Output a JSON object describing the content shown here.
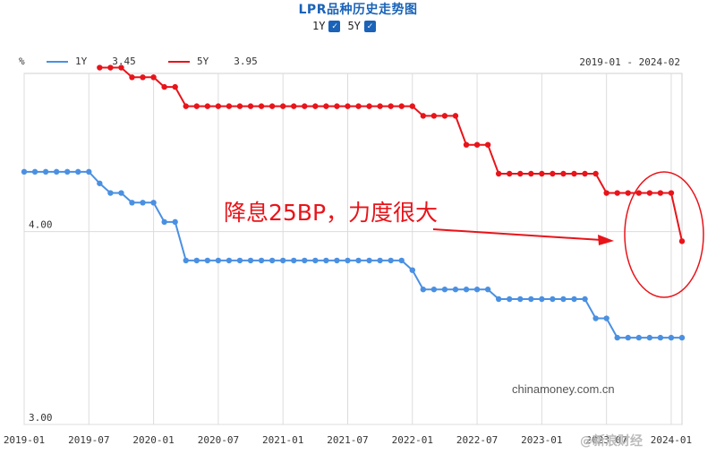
{
  "header": {
    "title": "LPR品种历史走势图",
    "toggles": [
      {
        "label": "1Y",
        "checked": true
      },
      {
        "label": "5Y",
        "checked": true
      }
    ]
  },
  "legend": {
    "unit": "%",
    "items": [
      {
        "name": "1Y",
        "value": "3.45",
        "color": "#4a90e2"
      },
      {
        "name": "5Y",
        "value": "3.95",
        "color": "#e8141a"
      }
    ],
    "date_range": "2019-01 - 2024-02"
  },
  "annotation": {
    "text": "降息25BP，力度很大",
    "color": "#e8141a"
  },
  "watermarks": {
    "source": "chinamoney.com.cn",
    "weibo": "@新浪财经"
  },
  "chart_data": {
    "type": "line",
    "title": "LPR品种历史走势图",
    "xlabel": "",
    "ylabel": "%",
    "ylim": [
      3.0,
      4.82
    ],
    "grid": true,
    "legend_position": "top-left",
    "y_ticks": [
      {
        "value": 4.0,
        "label": "4.00"
      },
      {
        "value": 3.0,
        "label": "3.00"
      }
    ],
    "x_ticks": [
      "2019-01",
      "2019-07",
      "2020-01",
      "2020-07",
      "2021-01",
      "2021-07",
      "2022-01",
      "2022-07",
      "2023-01",
      "2023-07",
      "2024-01"
    ],
    "x_tick_labels": [
      "2019-01",
      "2019-07",
      "2020-01",
      "2020-07",
      "2021-01",
      "2021-07",
      "2022-01",
      "2022-07",
      "2023-01",
      "2023-07",
      "2024-01"
    ],
    "series": [
      {
        "name": "1Y",
        "color": "#4a90e2",
        "x": [
          "2019-01",
          "2019-02",
          "2019-03",
          "2019-04",
          "2019-05",
          "2019-06",
          "2019-07",
          "2019-08",
          "2019-09",
          "2019-10",
          "2019-11",
          "2019-12",
          "2020-01",
          "2020-02",
          "2020-03",
          "2020-04",
          "2020-05",
          "2020-06",
          "2020-07",
          "2020-08",
          "2020-09",
          "2020-10",
          "2020-11",
          "2020-12",
          "2021-01",
          "2021-02",
          "2021-03",
          "2021-04",
          "2021-05",
          "2021-06",
          "2021-07",
          "2021-08",
          "2021-09",
          "2021-10",
          "2021-11",
          "2021-12",
          "2022-01",
          "2022-02",
          "2022-03",
          "2022-04",
          "2022-05",
          "2022-06",
          "2022-07",
          "2022-08",
          "2022-09",
          "2022-10",
          "2022-11",
          "2022-12",
          "2023-01",
          "2023-02",
          "2023-03",
          "2023-04",
          "2023-05",
          "2023-06",
          "2023-07",
          "2023-08",
          "2023-09",
          "2023-10",
          "2023-11",
          "2023-12",
          "2024-01",
          "2024-02"
        ],
        "values": [
          4.31,
          4.31,
          4.31,
          4.31,
          4.31,
          4.31,
          4.31,
          4.25,
          4.2,
          4.2,
          4.15,
          4.15,
          4.15,
          4.05,
          4.05,
          3.85,
          3.85,
          3.85,
          3.85,
          3.85,
          3.85,
          3.85,
          3.85,
          3.85,
          3.85,
          3.85,
          3.85,
          3.85,
          3.85,
          3.85,
          3.85,
          3.85,
          3.85,
          3.85,
          3.85,
          3.85,
          3.8,
          3.7,
          3.7,
          3.7,
          3.7,
          3.7,
          3.7,
          3.7,
          3.65,
          3.65,
          3.65,
          3.65,
          3.65,
          3.65,
          3.65,
          3.65,
          3.65,
          3.55,
          3.55,
          3.45,
          3.45,
          3.45,
          3.45,
          3.45,
          3.45,
          3.45
        ]
      },
      {
        "name": "5Y",
        "color": "#e8141a",
        "x": [
          "2019-08",
          "2019-09",
          "2019-10",
          "2019-11",
          "2019-12",
          "2020-01",
          "2020-02",
          "2020-03",
          "2020-04",
          "2020-05",
          "2020-06",
          "2020-07",
          "2020-08",
          "2020-09",
          "2020-10",
          "2020-11",
          "2020-12",
          "2021-01",
          "2021-02",
          "2021-03",
          "2021-04",
          "2021-05",
          "2021-06",
          "2021-07",
          "2021-08",
          "2021-09",
          "2021-10",
          "2021-11",
          "2021-12",
          "2022-01",
          "2022-02",
          "2022-03",
          "2022-04",
          "2022-05",
          "2022-06",
          "2022-07",
          "2022-08",
          "2022-09",
          "2022-10",
          "2022-11",
          "2022-12",
          "2023-01",
          "2023-02",
          "2023-03",
          "2023-04",
          "2023-05",
          "2023-06",
          "2023-07",
          "2023-08",
          "2023-09",
          "2023-10",
          "2023-11",
          "2023-12",
          "2024-01",
          "2024-02"
        ],
        "values": [
          4.85,
          4.85,
          4.85,
          4.8,
          4.8,
          4.8,
          4.75,
          4.75,
          4.65,
          4.65,
          4.65,
          4.65,
          4.65,
          4.65,
          4.65,
          4.65,
          4.65,
          4.65,
          4.65,
          4.65,
          4.65,
          4.65,
          4.65,
          4.65,
          4.65,
          4.65,
          4.65,
          4.65,
          4.65,
          4.65,
          4.6,
          4.6,
          4.6,
          4.6,
          4.45,
          4.45,
          4.45,
          4.3,
          4.3,
          4.3,
          4.3,
          4.3,
          4.3,
          4.3,
          4.3,
          4.3,
          4.3,
          4.2,
          4.2,
          4.2,
          4.2,
          4.2,
          4.2,
          4.2,
          3.95
        ]
      }
    ]
  }
}
